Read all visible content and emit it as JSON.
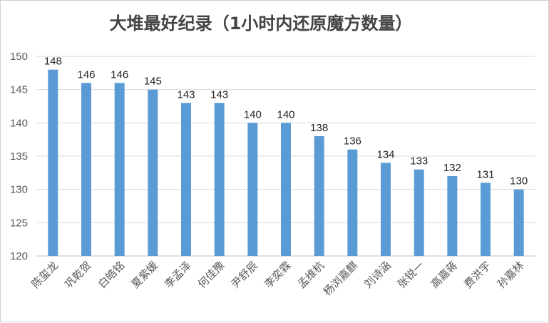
{
  "chart_data": {
    "type": "bar",
    "title": "大堆最好纪录（1小时内还原魔方数量）",
    "xlabel": "",
    "ylabel": "",
    "ylim": [
      120,
      150
    ],
    "yticks": [
      120,
      125,
      130,
      135,
      140,
      145,
      150
    ],
    "grid": true,
    "legend": "none",
    "bar_color": "#5B9BD5",
    "categories": [
      "陈玺龙",
      "巩乾贺",
      "白皓铭",
      "夏紫媛",
      "李孟泽",
      "何佳豫",
      "尹舒辰",
      "李奕霖",
      "孟维杭",
      "杨浏嘉麒",
      "刘诗涵",
      "张锐一",
      "高嘉蒋",
      "费洪宇",
      "孙嘉林"
    ],
    "values": [
      148,
      146,
      146,
      145,
      143,
      143,
      140,
      140,
      138,
      136,
      134,
      133,
      132,
      131,
      130
    ]
  }
}
